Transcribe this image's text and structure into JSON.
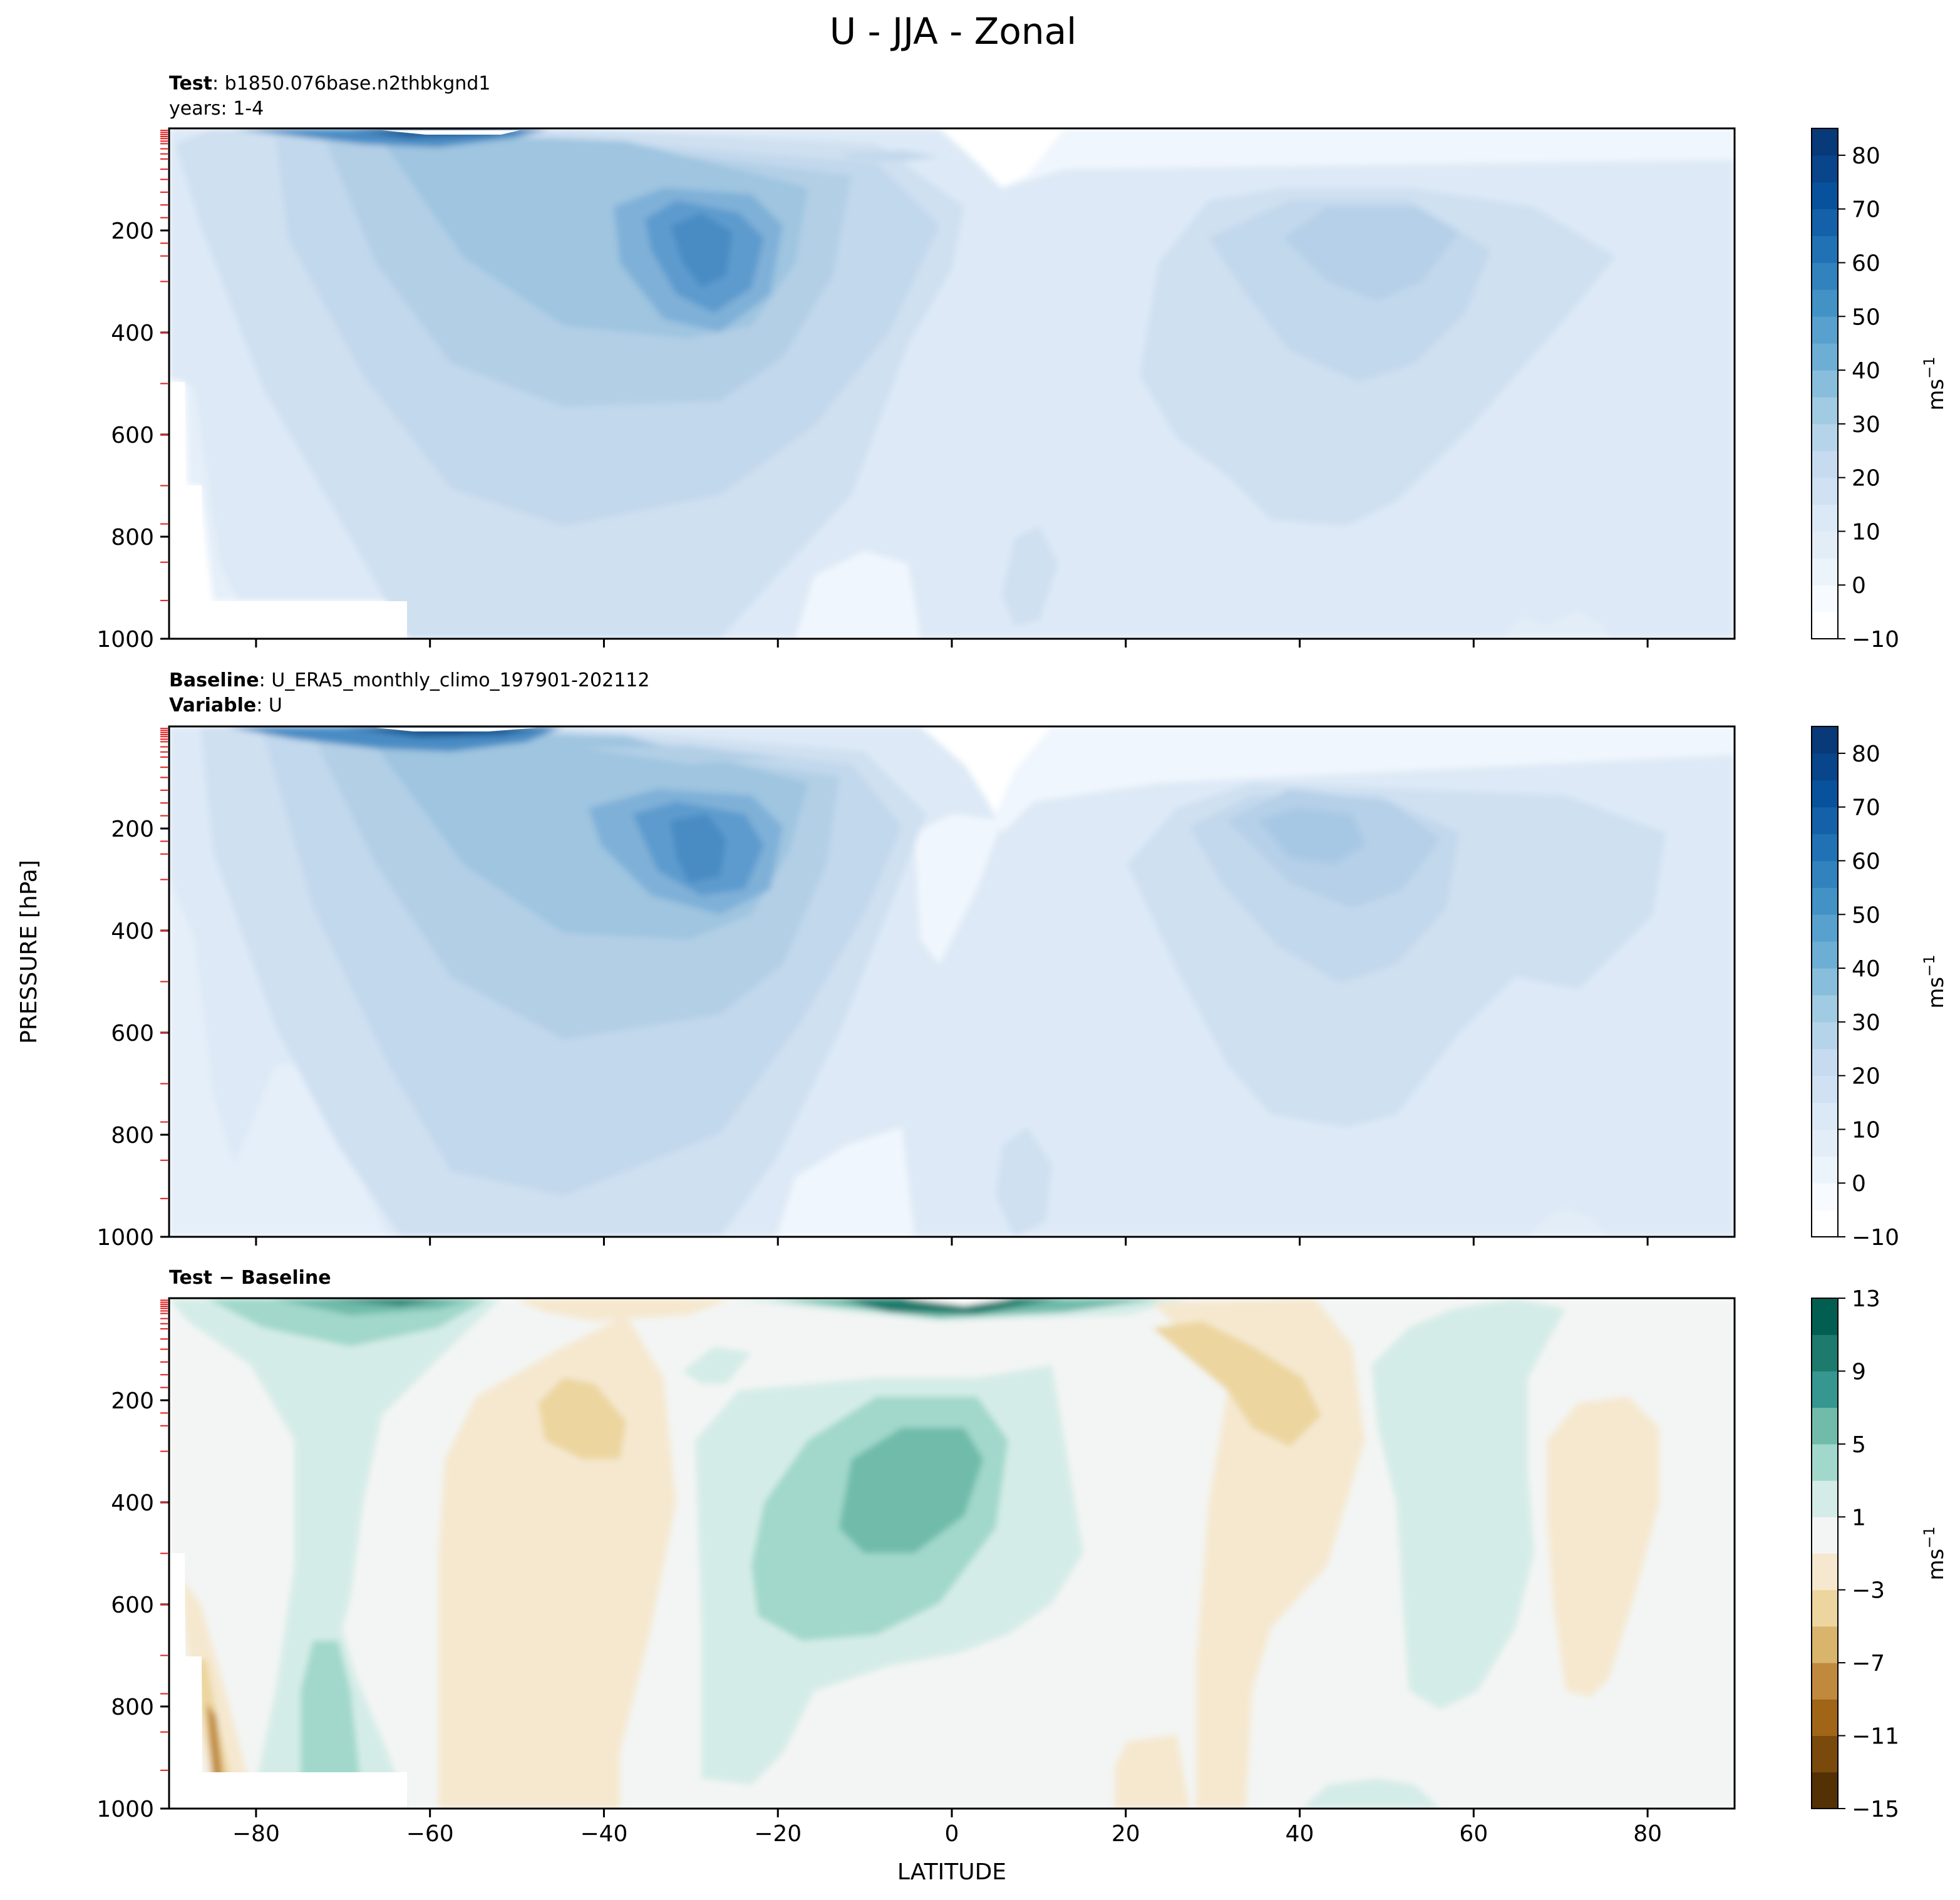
{
  "figure": {
    "title": "U - JJA - Zonal",
    "ylabel": "PRESSURE [hPa]",
    "xlabel": "LATITUDE"
  },
  "panels": [
    {
      "id": "test",
      "line1_bold": "Test",
      "line1_text": ": b1850.076base.n2thbkgnd1",
      "line2_bold": "",
      "line2_text": "years: 1-4",
      "cbar_ticks": [
        "80",
        "70",
        "60",
        "50",
        "40",
        "30",
        "20",
        "10",
        "0",
        "−10"
      ],
      "cbar_label": "ms",
      "cbar_label_sup": "−1"
    },
    {
      "id": "baseline",
      "line1_bold": "Baseline",
      "line1_text": ": U_ERA5_monthly_climo_197901-202112",
      "line2_bold": "Variable",
      "line2_text": ": U",
      "cbar_ticks": [
        "80",
        "70",
        "60",
        "50",
        "40",
        "30",
        "20",
        "10",
        "0",
        "−10"
      ],
      "cbar_label": "ms",
      "cbar_label_sup": "−1"
    },
    {
      "id": "diff",
      "line1_bold": "Test − Baseline",
      "line1_text": "",
      "line2_bold": "",
      "line2_text": "",
      "cbar_ticks": [
        "13",
        "9",
        "5",
        "1",
        "−3",
        "−7",
        "−11",
        "−15"
      ],
      "cbar_label": "ms",
      "cbar_label_sup": "−1"
    }
  ],
  "chart_data": [
    {
      "type": "heatmap",
      "panel": "test",
      "x_range": [
        -90,
        90
      ],
      "y_range": [
        1000,
        0
      ],
      "x_ticks": [
        -80,
        -60,
        -40,
        -20,
        0,
        20,
        40,
        60,
        80
      ],
      "y_ticks": [
        200,
        400,
        600,
        800,
        1000
      ],
      "colorbar_levels": [
        -10,
        -5,
        0,
        5,
        10,
        15,
        20,
        25,
        30,
        35,
        40,
        45,
        50,
        55,
        60,
        65,
        70,
        75,
        80,
        85
      ],
      "colormap": "blues",
      "features": [
        {
          "lat": -57,
          "p": 20,
          "u": 80
        },
        {
          "lat": -28,
          "p": 200,
          "u": 40
        },
        {
          "lat": 46,
          "p": 210,
          "u": 20
        },
        {
          "lat": 0,
          "p": 60,
          "u": -5
        },
        {
          "lat": 8,
          "p": 130,
          "u": -5
        },
        {
          "lat": -7,
          "p": 950,
          "u": -5
        }
      ]
    },
    {
      "type": "heatmap",
      "panel": "baseline",
      "x_range": [
        -90,
        90
      ],
      "y_range": [
        1000,
        0
      ],
      "x_ticks": [
        -80,
        -60,
        -40,
        -20,
        0,
        20,
        40,
        60,
        80
      ],
      "y_ticks": [
        200,
        400,
        600,
        800,
        1000
      ],
      "colorbar_levels": [
        -10,
        -5,
        0,
        5,
        10,
        15,
        20,
        25,
        30,
        35,
        40,
        45,
        50,
        55,
        60,
        65,
        70,
        75,
        80,
        85
      ],
      "colormap": "blues",
      "features": [
        {
          "lat": -55,
          "p": 20,
          "u": 80
        },
        {
          "lat": -30,
          "p": 200,
          "u": 40
        },
        {
          "lat": 43,
          "p": 200,
          "u": 25
        },
        {
          "lat": 5,
          "p": 70,
          "u": -5
        },
        {
          "lat": -5,
          "p": 900,
          "u": -5
        }
      ]
    },
    {
      "type": "heatmap",
      "panel": "diff",
      "x_range": [
        -90,
        90
      ],
      "y_range": [
        1000,
        0
      ],
      "x_ticks": [
        -80,
        -60,
        -40,
        -20,
        0,
        20,
        40,
        60,
        80
      ],
      "y_ticks": [
        200,
        400,
        600,
        800,
        1000
      ],
      "colorbar_levels": [
        -15,
        -13,
        -11,
        -9,
        -7,
        -5,
        -3,
        -1,
        1,
        3,
        5,
        7,
        9,
        11,
        13
      ],
      "colormap": "BrBG",
      "features": [
        {
          "lat": -55,
          "p": 10,
          "u": 9
        },
        {
          "lat": -8,
          "p": 15,
          "u": 11
        },
        {
          "lat": -5,
          "p": 270,
          "u": 7
        },
        {
          "lat": -45,
          "p": 250,
          "u": -4
        },
        {
          "lat": 35,
          "p": 150,
          "u": -4
        },
        {
          "lat": 75,
          "p": 400,
          "u": -2
        },
        {
          "lat": -72,
          "p": 800,
          "u": 5
        },
        {
          "lat": -85,
          "p": 850,
          "u": -7
        },
        {
          "lat": 55,
          "p": 500,
          "u": 2
        }
      ]
    }
  ]
}
